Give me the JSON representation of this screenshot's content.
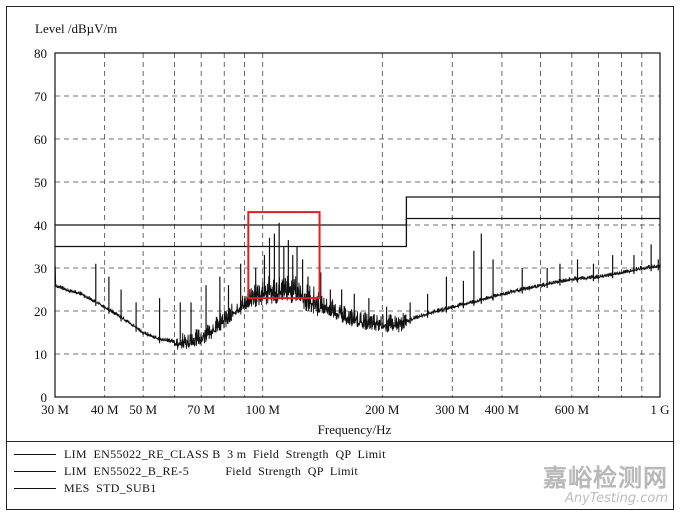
{
  "chart_data": {
    "type": "line",
    "title": "",
    "ylabel": "Level /dBµV/m",
    "xlabel": "Frequency/Hz",
    "x_scale": "log",
    "xlim_mhz": [
      30,
      1000
    ],
    "ylim": [
      0,
      80
    ],
    "y_ticks": [
      0,
      10,
      20,
      30,
      40,
      50,
      60,
      70,
      80
    ],
    "x_ticks": [
      {
        "mhz": 30,
        "label": "30 M"
      },
      {
        "mhz": 40,
        "label": "40 M"
      },
      {
        "mhz": 50,
        "label": "50 M"
      },
      {
        "mhz": 70,
        "label": "70 M"
      },
      {
        "mhz": 100,
        "label": "100 M"
      },
      {
        "mhz": 200,
        "label": "200 M"
      },
      {
        "mhz": 300,
        "label": "300 M"
      },
      {
        "mhz": 400,
        "label": "400 M"
      },
      {
        "mhz": 600,
        "label": "600 M"
      },
      {
        "mhz": 1000,
        "label": "1 G"
      }
    ],
    "x_minor_grid_mhz": [
      60,
      80,
      90,
      500,
      700,
      800,
      900
    ],
    "grid": "dashed",
    "series": [
      {
        "name": "LIM EN55022_RE_CLASS B 3 m Field Strength QP Limit",
        "style": "step",
        "points": [
          [
            30,
            40
          ],
          [
            230,
            40
          ],
          [
            230,
            46.5
          ],
          [
            1000,
            46.5
          ]
        ]
      },
      {
        "name": "LIM EN55022_B_RE-5 Field Strength QP Limit",
        "style": "step",
        "points": [
          [
            30,
            35
          ],
          [
            230,
            35
          ],
          [
            230,
            41.5
          ],
          [
            1000,
            41.5
          ]
        ]
      },
      {
        "name": "MES STD_SUB1",
        "style": "measurement",
        "baseline": [
          [
            30,
            26
          ],
          [
            32,
            25
          ],
          [
            35,
            24
          ],
          [
            40,
            21
          ],
          [
            45,
            18
          ],
          [
            50,
            15
          ],
          [
            55,
            13.5
          ],
          [
            60,
            13
          ],
          [
            65,
            13
          ],
          [
            70,
            14
          ],
          [
            75,
            16
          ],
          [
            80,
            18
          ],
          [
            85,
            20
          ],
          [
            90,
            22
          ],
          [
            95,
            23.5
          ],
          [
            100,
            24.5
          ],
          [
            110,
            25
          ],
          [
            120,
            25
          ],
          [
            130,
            23
          ],
          [
            140,
            21.5
          ],
          [
            150,
            20.5
          ],
          [
            160,
            19
          ],
          [
            180,
            17.5
          ],
          [
            200,
            17
          ],
          [
            220,
            17
          ],
          [
            250,
            19
          ],
          [
            300,
            21
          ],
          [
            350,
            22.5
          ],
          [
            400,
            24
          ],
          [
            500,
            26
          ],
          [
            600,
            27.5
          ],
          [
            700,
            28
          ],
          [
            800,
            29
          ],
          [
            900,
            30
          ],
          [
            1000,
            30.5
          ]
        ],
        "peaks": [
          [
            38,
            31
          ],
          [
            41,
            28
          ],
          [
            44,
            25
          ],
          [
            48,
            22
          ],
          [
            55,
            23
          ],
          [
            62,
            22
          ],
          [
            66,
            22
          ],
          [
            72,
            26
          ],
          [
            78,
            28
          ],
          [
            82,
            26
          ],
          [
            88,
            31
          ],
          [
            92,
            28
          ],
          [
            96,
            30
          ],
          [
            101,
            33
          ],
          [
            104,
            37
          ],
          [
            107,
            38
          ],
          [
            110,
            40.5
          ],
          [
            113,
            35
          ],
          [
            116,
            36.5
          ],
          [
            119,
            33
          ],
          [
            122,
            35
          ],
          [
            126,
            32
          ],
          [
            130,
            28
          ],
          [
            140,
            29
          ],
          [
            148,
            25
          ],
          [
            158,
            25
          ],
          [
            170,
            24
          ],
          [
            185,
            23
          ],
          [
            205,
            21
          ],
          [
            235,
            22
          ],
          [
            260,
            24
          ],
          [
            290,
            28
          ],
          [
            320,
            27
          ],
          [
            340,
            34
          ],
          [
            355,
            38
          ],
          [
            380,
            32
          ],
          [
            450,
            30
          ],
          [
            520,
            30
          ],
          [
            560,
            31
          ],
          [
            620,
            32
          ],
          [
            680,
            31
          ],
          [
            760,
            33
          ],
          [
            860,
            33
          ],
          [
            950,
            35.5
          ],
          [
            990,
            32
          ]
        ]
      }
    ],
    "highlight_box": {
      "x_mhz": [
        92,
        139
      ],
      "y": [
        23,
        43
      ],
      "color": "#e02020"
    }
  },
  "legend": [
    "LIM  EN55022_RE_CLASS B  3 m  Field  Strength  QP  Limit",
    "LIM  EN55022_B_RE-5           Field  Strength  QP  Limit",
    "MES  STD_SUB1"
  ],
  "watermark": {
    "cn": "嘉峪检测网",
    "en": "AnyTesting.com"
  },
  "colors": {
    "line": "#111111",
    "grid": "#444444",
    "highlight": "#e02020"
  }
}
